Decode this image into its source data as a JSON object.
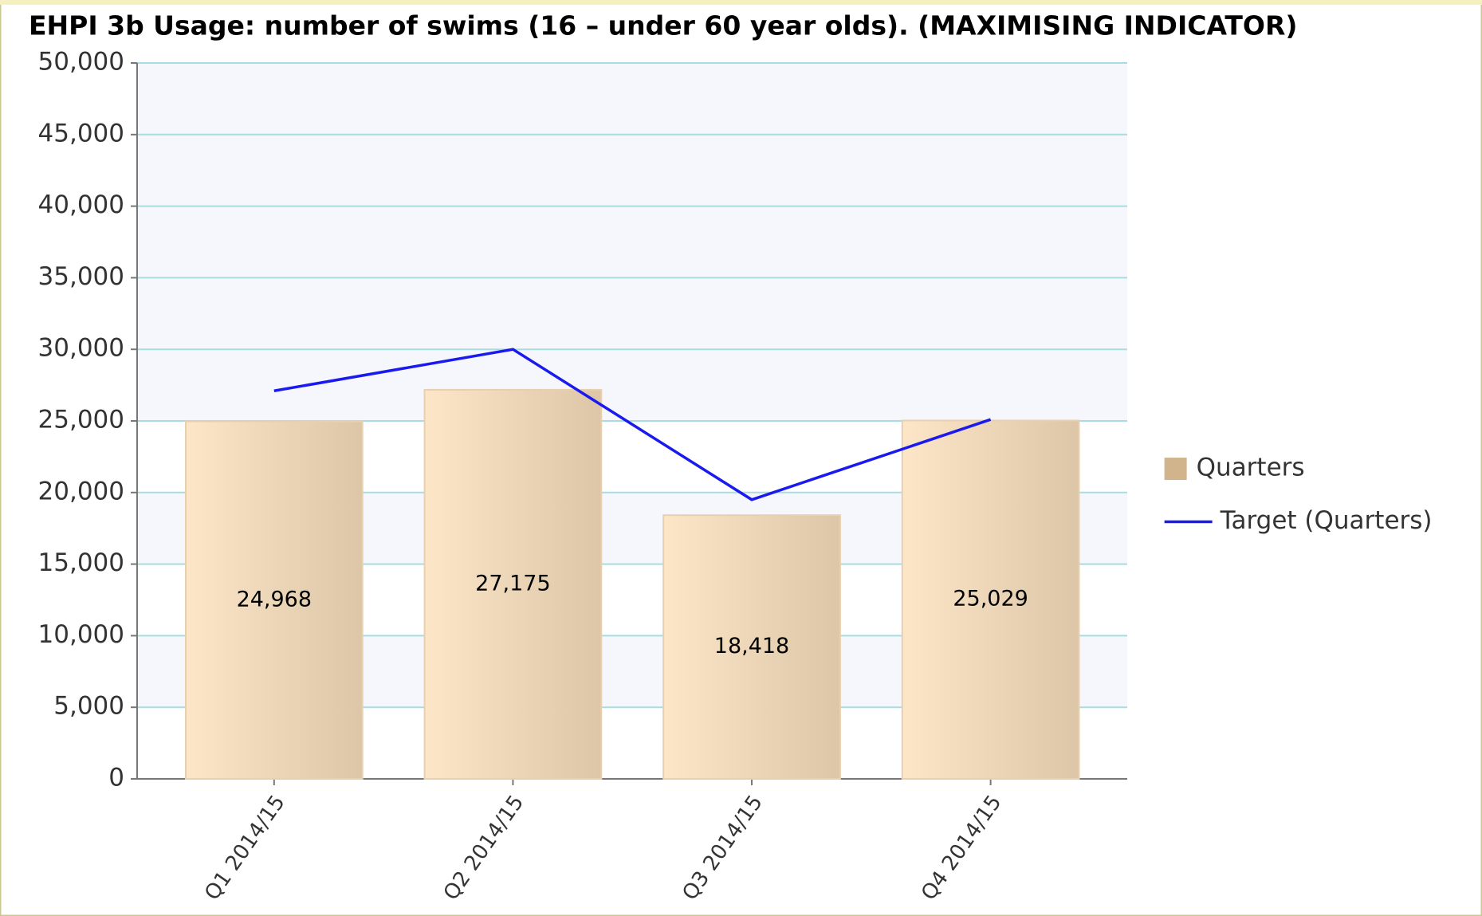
{
  "chart_data": {
    "type": "bar",
    "title": "EHPI 3b Usage: number of swims (16 – under 60 year olds). (MAXIMISING INDICATOR)",
    "categories": [
      "Q1 2014/15",
      "Q2 2014/15",
      "Q3 2014/15",
      "Q4 2014/15"
    ],
    "series": [
      {
        "name": "Quarters",
        "type": "bar",
        "color": "#d2b48c",
        "values": [
          24968,
          27175,
          18418,
          25029
        ],
        "value_labels": [
          "24,968",
          "27,175",
          "18,418",
          "25,029"
        ]
      },
      {
        "name": "Target (Quarters)",
        "type": "line",
        "color": "#1a1aee",
        "values": [
          27100,
          30000,
          19500,
          25100
        ]
      }
    ],
    "ylim": [
      0,
      50000
    ],
    "yticks": [
      0,
      {
        "value": 5000,
        "label": "5,000"
      },
      {
        "value": 10000,
        "label": "10,000"
      },
      {
        "value": 15000,
        "label": "15,000"
      },
      {
        "value": 20000,
        "label": "20,000"
      },
      {
        "value": 25000,
        "label": "25,000"
      },
      {
        "value": 30000,
        "label": "30,000"
      },
      {
        "value": 35000,
        "label": "35,000"
      },
      {
        "value": 40000,
        "label": "40,000"
      },
      {
        "value": 45000,
        "label": "45,000"
      },
      {
        "value": 50000,
        "label": "50,000"
      }
    ],
    "grid": true,
    "legend": "right"
  }
}
